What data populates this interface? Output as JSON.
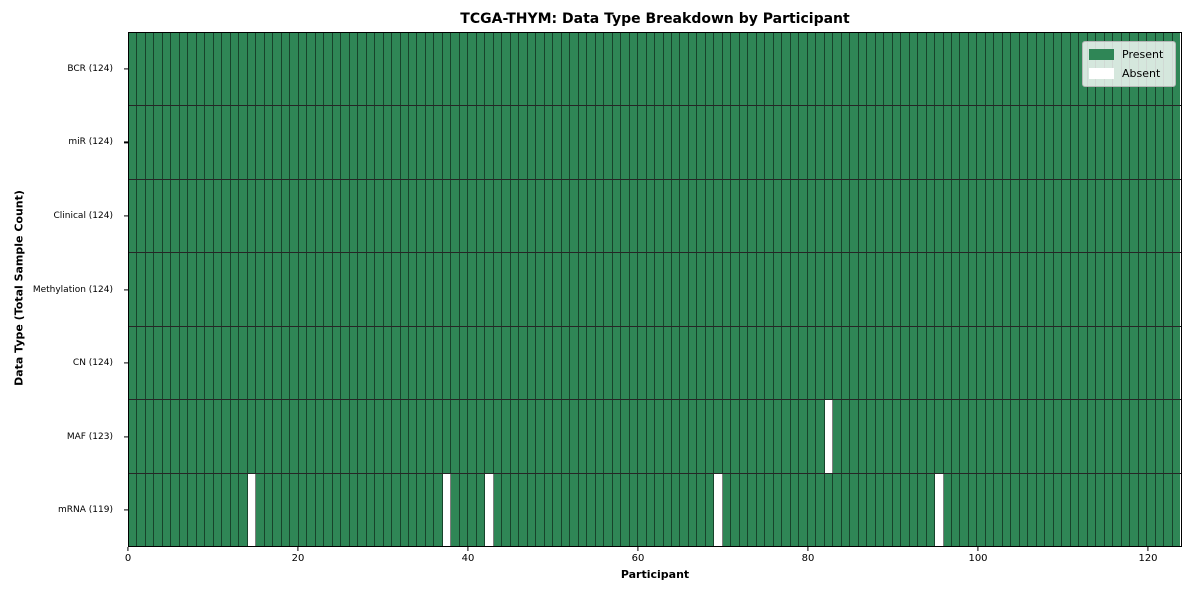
{
  "title": "TCGA-THYM: Data Type Breakdown by Participant",
  "xlabel": "Participant",
  "ylabel": "Data Type (Total Sample Count)",
  "colors": {
    "present": "#2f8656",
    "absent": "#ffffff",
    "cell_border": "rgba(0,0,0,0.50)",
    "row_border": "rgba(0,0,0,0.85)"
  },
  "chart_data": {
    "type": "heatmap",
    "title": "TCGA-THYM: Data Type Breakdown by Participant",
    "xlabel": "Participant",
    "ylabel": "Data Type (Total Sample Count)",
    "n_participants": 124,
    "x_ticks": [
      0,
      20,
      40,
      60,
      80,
      100,
      120
    ],
    "xlim": [
      0,
      124
    ],
    "grid": false,
    "legend": [
      "Present",
      "Absent"
    ],
    "legend_position": "upper right",
    "rows": [
      {
        "label": "BCR (124)",
        "data_type": "BCR",
        "total": 124,
        "absent_participants": []
      },
      {
        "label": "miR (124)",
        "data_type": "miR",
        "total": 124,
        "absent_participants": []
      },
      {
        "label": "Clinical (124)",
        "data_type": "Clinical",
        "total": 124,
        "absent_participants": []
      },
      {
        "label": "Methylation (124)",
        "data_type": "Methylation",
        "total": 124,
        "absent_participants": []
      },
      {
        "label": "CN (124)",
        "data_type": "CN",
        "total": 124,
        "absent_participants": []
      },
      {
        "label": "MAF (123)",
        "data_type": "MAF",
        "total": 123,
        "absent_participants": [
          82
        ]
      },
      {
        "label": "mRNA (119)",
        "data_type": "mRNA",
        "total": 119,
        "absent_participants": [
          14,
          37,
          42,
          69,
          95
        ]
      }
    ]
  }
}
